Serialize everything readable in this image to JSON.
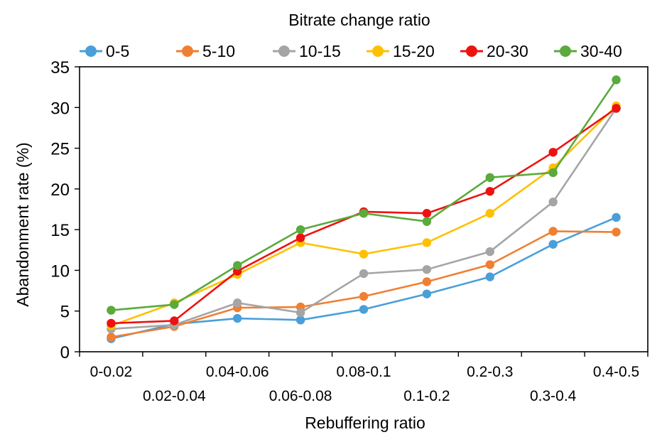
{
  "chart_data": {
    "type": "line",
    "legend_title": "Bitrate change ratio",
    "legend_position": "top",
    "xlabel": "Rebuffering ratio",
    "ylabel": "Abandonment rate (%)",
    "categories": [
      "0-0.02",
      "0.02-0.04",
      "0.04-0.06",
      "0.06-0.08",
      "0.08-0.1",
      "0.1-0.2",
      "0.2-0.3",
      "0.3-0.4",
      "0.4-0.5"
    ],
    "ylim": [
      0,
      35
    ],
    "yticks": [
      0,
      5,
      10,
      15,
      20,
      25,
      30,
      35
    ],
    "grid": false,
    "series": [
      {
        "name": "0-5",
        "color": "#4a9fd8",
        "values": [
          1.6,
          3.4,
          4.1,
          3.9,
          5.2,
          7.1,
          9.2,
          13.2,
          16.5
        ]
      },
      {
        "name": "5-10",
        "color": "#f07f33",
        "values": [
          1.8,
          3.1,
          5.4,
          5.5,
          6.8,
          8.6,
          10.7,
          14.8,
          14.7
        ]
      },
      {
        "name": "10-15",
        "color": "#a5a5a5",
        "values": [
          2.8,
          3.3,
          6.0,
          4.8,
          9.6,
          10.1,
          12.3,
          18.4,
          29.9
        ]
      },
      {
        "name": "15-20",
        "color": "#ffc000",
        "values": [
          3.2,
          6.0,
          9.5,
          13.4,
          12.0,
          13.4,
          17.0,
          22.6,
          30.2
        ]
      },
      {
        "name": "20-30",
        "color": "#ee1111",
        "values": [
          3.5,
          3.8,
          9.9,
          14.0,
          17.2,
          17.0,
          19.7,
          24.5,
          29.9
        ]
      },
      {
        "name": "30-40",
        "color": "#5aaa3c",
        "values": [
          5.1,
          5.8,
          10.6,
          15.0,
          17.0,
          16.0,
          21.4,
          22.0,
          33.4
        ]
      }
    ]
  }
}
